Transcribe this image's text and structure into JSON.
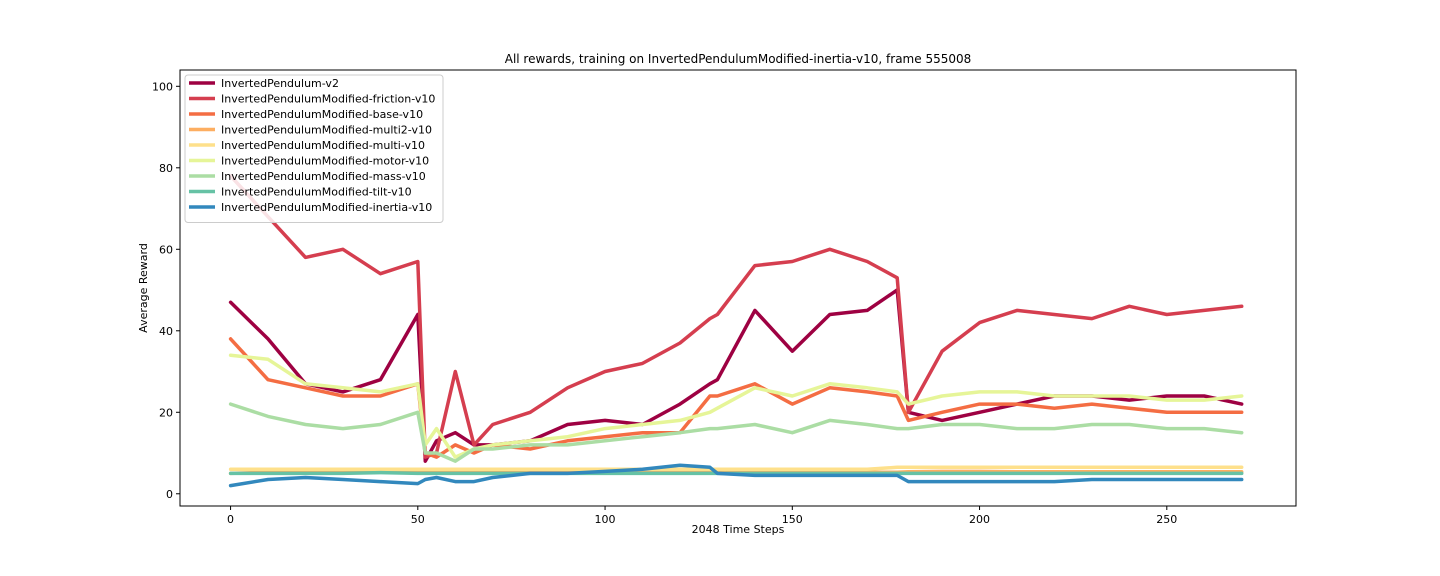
{
  "chart_data": {
    "type": "line",
    "title": "All rewards, training on InvertedPendulumModified-inertia-v10, frame 555008",
    "xlabel": "2048 Time Steps",
    "ylabel": "Average Reward",
    "xlim": [
      -13.5,
      284.5
    ],
    "ylim": [
      -3,
      104
    ],
    "xticks": [
      0,
      50,
      100,
      150,
      200,
      250
    ],
    "yticks": [
      0,
      20,
      40,
      60,
      80,
      100
    ],
    "legend_position": "top-left",
    "grid": false,
    "x": [
      0,
      10,
      20,
      30,
      40,
      50,
      52,
      55,
      60,
      65,
      70,
      80,
      90,
      100,
      110,
      120,
      128,
      130,
      140,
      150,
      160,
      170,
      178,
      181,
      190,
      200,
      210,
      220,
      230,
      240,
      250,
      260,
      270
    ],
    "series": [
      {
        "name": "InvertedPendulum-v2",
        "color": "#9e0142",
        "values": [
          47,
          38,
          27,
          25,
          28,
          44,
          8,
          13,
          15,
          12,
          12,
          13,
          17,
          18,
          17,
          22,
          27,
          28,
          45,
          35,
          44,
          45,
          50,
          20,
          18,
          20,
          22,
          24,
          24,
          23,
          24,
          24,
          22
        ]
      },
      {
        "name": "InvertedPendulumModified-friction-v10",
        "color": "#d53e4f",
        "values": [
          78,
          68,
          58,
          60,
          54,
          57,
          9,
          10,
          30,
          12,
          17,
          20,
          26,
          30,
          32,
          37,
          43,
          44,
          56,
          57,
          60,
          57,
          53,
          20,
          35,
          42,
          45,
          44,
          43,
          46,
          44,
          45,
          46
        ]
      },
      {
        "name": "InvertedPendulumModified-base-v10",
        "color": "#f46d43",
        "values": [
          38,
          28,
          26,
          24,
          24,
          27,
          10,
          9,
          12,
          10,
          12,
          11,
          13,
          14,
          15,
          15,
          24,
          24,
          27,
          22,
          26,
          25,
          24,
          18,
          20,
          22,
          22,
          21,
          22,
          21,
          20,
          20,
          20
        ]
      },
      {
        "name": "InvertedPendulumModified-multi2-v10",
        "color": "#fdae61",
        "values": [
          5,
          5.3,
          5.3,
          5.5,
          5.5,
          5.3,
          5.2,
          5.3,
          5.2,
          5.4,
          5.3,
          5.3,
          5.3,
          5.4,
          5.3,
          5.3,
          5.4,
          5.3,
          5.3,
          5.4,
          5.3,
          5.3,
          5.3,
          5.4,
          5.5,
          5.5,
          5.4,
          5.4,
          5.4,
          5.4,
          5.4,
          5.4,
          5.4
        ]
      },
      {
        "name": "InvertedPendulumModified-multi-v10",
        "color": "#fee08b",
        "values": [
          6,
          6,
          6,
          6,
          6,
          6,
          6,
          6,
          6,
          6,
          6,
          6,
          6,
          6,
          6,
          6,
          6,
          6,
          6,
          6,
          6,
          6,
          6.5,
          6.5,
          6.5,
          6.5,
          6.5,
          6.5,
          6.5,
          6.5,
          6.5,
          6.5,
          6.5
        ]
      },
      {
        "name": "InvertedPendulumModified-motor-v10",
        "color": "#e6f598",
        "values": [
          34,
          33,
          27,
          26,
          25,
          27,
          12,
          16,
          9,
          11,
          12,
          13,
          14,
          16,
          17,
          18,
          20,
          21,
          26,
          24,
          27,
          26,
          25,
          22,
          24,
          25,
          25,
          24,
          24,
          24,
          23,
          23,
          24
        ]
      },
      {
        "name": "InvertedPendulumModified-mass-v10",
        "color": "#abdda4",
        "values": [
          22,
          19,
          17,
          16,
          17,
          20,
          10,
          10,
          8,
          11,
          11,
          12,
          12,
          13,
          14,
          15,
          16,
          16,
          17,
          15,
          18,
          17,
          16,
          16,
          17,
          17,
          16,
          16,
          17,
          17,
          16,
          16,
          15
        ]
      },
      {
        "name": "InvertedPendulumModified-tilt-v10",
        "color": "#66c2a5",
        "values": [
          5,
          5,
          5,
          5,
          5.2,
          5,
          5,
          5,
          5,
          5,
          5,
          5,
          5,
          5,
          5,
          5,
          5,
          5,
          5,
          5,
          5,
          5,
          5,
          5,
          5,
          5,
          5,
          5,
          5,
          5,
          5,
          5,
          5
        ]
      },
      {
        "name": "InvertedPendulumModified-inertia-v10",
        "color": "#3288bd",
        "values": [
          2,
          3.5,
          4,
          3.5,
          3,
          2.5,
          3.5,
          4,
          3,
          3,
          4,
          5,
          5,
          5.5,
          6,
          7,
          6.5,
          5,
          4.5,
          4.5,
          4.5,
          4.5,
          4.5,
          3,
          3,
          3,
          3,
          3,
          3.5,
          3.5,
          3.5,
          3.5,
          3.5
        ]
      }
    ]
  }
}
